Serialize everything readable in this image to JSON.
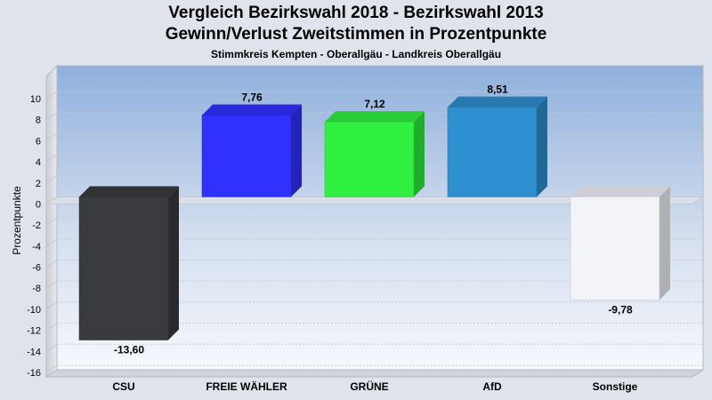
{
  "title_line1": "Vergleich Bezirkswahl 2018 - Bezirkswahl 2013",
  "title_line2": "Gewinn/Verlust Zweitstimmen in Prozentpunkte",
  "subtitle": "Stimmkreis Kempten - Oberallgäu - Landkreis Oberallgäu",
  "chart_data": {
    "type": "bar",
    "title": "Vergleich Bezirkswahl 2018 - Bezirkswahl 2013 / Gewinn/Verlust Zweitstimmen in Prozentpunkte",
    "subtitle": "Stimmkreis Kempten - Oberallgäu - Landkreis Oberallgäu",
    "xlabel": "",
    "ylabel": "Prozentpunkte",
    "categories": [
      "CSU",
      "FREIE WÄHLER",
      "GRÜNE",
      "AfD",
      "Sonstige"
    ],
    "values": [
      -13.6,
      7.76,
      7.12,
      8.51,
      -9.78
    ],
    "value_labels": [
      "-13,60",
      "7,76",
      "7,12",
      "8,51",
      "-9,78"
    ],
    "colors": [
      "#3a3b40",
      "#3030ff",
      "#30f040",
      "#2e90d0",
      "#f2f4fa"
    ],
    "ylim": [
      -16,
      10
    ],
    "yticks": [
      10,
      8,
      6,
      4,
      2,
      0,
      -2,
      -4,
      -6,
      -8,
      -10,
      -12,
      -14,
      -16
    ],
    "grid": true,
    "legend": "none"
  }
}
